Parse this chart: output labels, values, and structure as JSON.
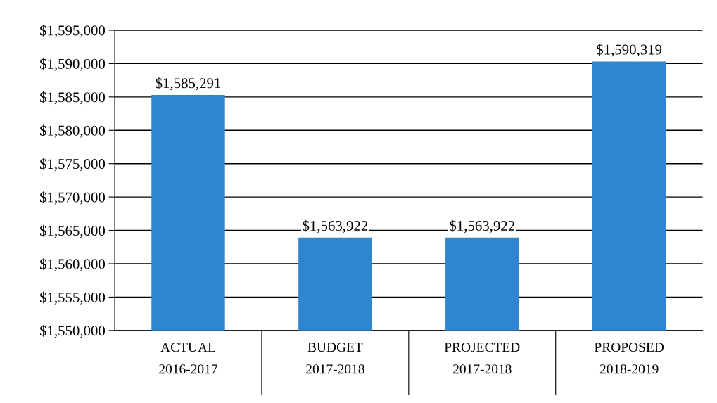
{
  "chart_data": {
    "type": "bar",
    "categories": [
      "ACTUAL\n2016-2017",
      "BUDGET\n2017-2018",
      "PROJECTED\n2017-2018",
      "PROPOSED\n2018-2019"
    ],
    "values": [
      1585291,
      1563922,
      1563922,
      1590319
    ],
    "value_labels": [
      "$1,585,291",
      "$1,563,922",
      "$1,563,922",
      "$1,590,319"
    ],
    "color": "#2f86d0",
    "ylim": [
      1550000,
      1595000
    ],
    "yticks": [
      {
        "value": 1550000,
        "label": "$1,550,000"
      },
      {
        "value": 1555000,
        "label": "$1,555,000"
      },
      {
        "value": 1560000,
        "label": "$1,560,000"
      },
      {
        "value": 1565000,
        "label": "$1,565,000"
      },
      {
        "value": 1570000,
        "label": "$1,570,000"
      },
      {
        "value": 1575000,
        "label": "$1,575,000"
      },
      {
        "value": 1580000,
        "label": "$1,580,000"
      },
      {
        "value": 1585000,
        "label": "$1,585,000"
      },
      {
        "value": 1590000,
        "label": "$1,590,000"
      },
      {
        "value": 1595000,
        "label": "$1,595,000"
      }
    ],
    "grid": "y"
  }
}
